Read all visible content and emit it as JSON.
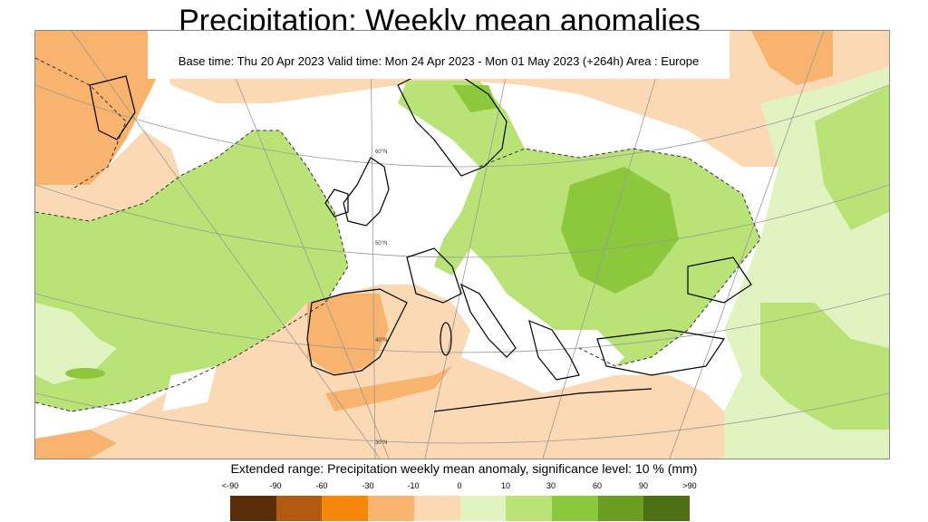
{
  "title": "Precipitation: Weekly mean anomalies",
  "subtitle": "Base time: Thu 20 Apr 2023 Valid time: Mon 24 Apr 2023 - Mon 01 May 2023 (+264h) Area : Europe",
  "legend": {
    "caption": "Extended range: Precipitation weekly mean anomaly, significance level: 10 % (mm)",
    "labels": [
      "<-90",
      "-90",
      "-60",
      "-30",
      "-10",
      "0",
      "10",
      "30",
      "60",
      "90",
      ">90"
    ],
    "colors": [
      "#5a2e0a",
      "#b25a10",
      "#f5870a",
      "#f8b46e",
      "#fcd9b5",
      "#e0f3c0",
      "#b9e377",
      "#8cc83c",
      "#6a9e22",
      "#4e7014"
    ]
  },
  "map": {
    "lat_labels": [
      "60°N",
      "50°N",
      "40°N",
      "30°N"
    ],
    "colors": {
      "ocean_bg": "#ffffff",
      "dry_light": "#fcd9b5",
      "dry_mid": "#f8b46e",
      "wet_light": "#e0f3c0",
      "wet_mid": "#b9e377",
      "wet_strong": "#8cc83c",
      "coast": "#000000",
      "grid": "#999999"
    }
  }
}
